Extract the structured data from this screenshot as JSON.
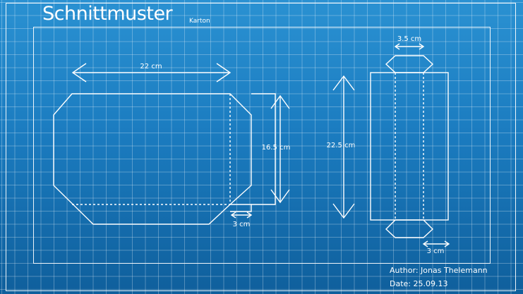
{
  "title": "Schnittmuster",
  "subtitle": "Karton",
  "author_line": "Author: Jonas Thelemann",
  "date_line": "Date: 25.09.13",
  "dimensions": {
    "width": "22 cm",
    "height": "16.5 cm",
    "flap": "3 cm",
    "side_length": "22.5 cm",
    "side_width": "3.5 cm",
    "side_flap": "3 cm"
  },
  "colors": {
    "background_top": "#2a91d2",
    "background_bottom": "#0f5f9c",
    "line": "#ffffff"
  }
}
